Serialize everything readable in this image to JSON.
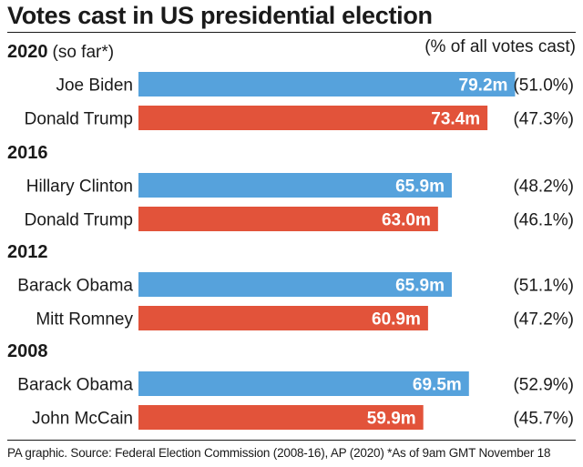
{
  "title": "Votes cast in US presidential election",
  "unit_label": "(% of all votes cast)",
  "footer": "PA graphic. Source: Federal Election Commission (2008-16), AP (2020) *As of 9am GMT November 18",
  "colors": {
    "dem": "#56a2dc",
    "rep": "#e2533a",
    "text": "#1a1a1a"
  },
  "chart_data": {
    "type": "bar",
    "orientation": "horizontal",
    "title": "Votes cast in US presidential election",
    "unit": "millions of votes",
    "groups": [
      {
        "year": "2020",
        "note": "(so far*)",
        "bars": [
          {
            "candidate": "Joe Biden",
            "party": "dem",
            "value": 79.2,
            "value_label": "79.2m",
            "share": "(51.0%)"
          },
          {
            "candidate": "Donald Trump",
            "party": "rep",
            "value": 73.4,
            "value_label": "73.4m",
            "share": "(47.3%)"
          }
        ]
      },
      {
        "year": "2016",
        "note": "",
        "bars": [
          {
            "candidate": "Hillary Clinton",
            "party": "dem",
            "value": 65.9,
            "value_label": "65.9m",
            "share": "(48.2%)"
          },
          {
            "candidate": "Donald Trump",
            "party": "rep",
            "value": 63.0,
            "value_label": "63.0m",
            "share": "(46.1%)"
          }
        ]
      },
      {
        "year": "2012",
        "note": "",
        "bars": [
          {
            "candidate": "Barack Obama",
            "party": "dem",
            "value": 65.9,
            "value_label": "65.9m",
            "share": "(51.1%)"
          },
          {
            "candidate": "Mitt Romney",
            "party": "rep",
            "value": 60.9,
            "value_label": "60.9m",
            "share": "(47.2%)"
          }
        ]
      },
      {
        "year": "2008",
        "note": "",
        "bars": [
          {
            "candidate": "Barack Obama",
            "party": "dem",
            "value": 69.5,
            "value_label": "69.5m",
            "share": "(52.9%)"
          },
          {
            "candidate": "John McCain",
            "party": "rep",
            "value": 59.9,
            "value_label": "59.9m",
            "share": "(45.7%)"
          }
        ]
      }
    ]
  }
}
